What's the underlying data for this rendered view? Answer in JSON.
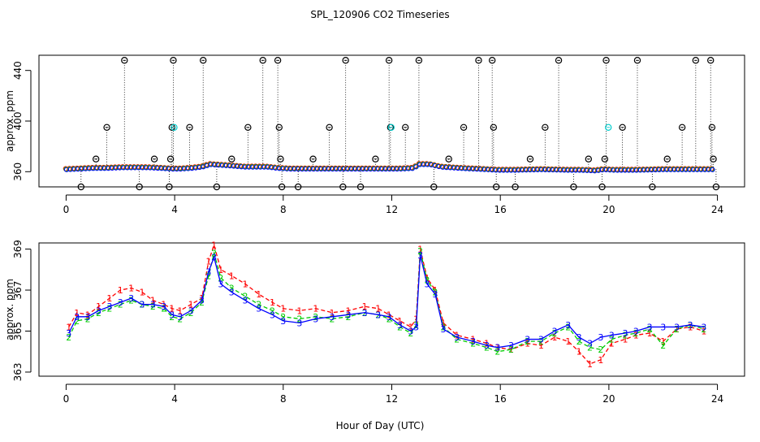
{
  "title": "SPL_120906  CO2 Timeseries",
  "xlabel": "Hour of Day (UTC)",
  "chart_data": [
    {
      "type": "scatter",
      "panel": "top",
      "ylabel": "approx. ppm",
      "xlim": [
        -1,
        25
      ],
      "ylim": [
        348,
        452
      ],
      "x_ticks": [
        0,
        4,
        8,
        12,
        16,
        20,
        24
      ],
      "y_ticks": [
        360,
        400,
        440
      ],
      "grid": false,
      "series": [
        {
          "marker": "o-black",
          "color": "#000000",
          "points": [
            [
              0.55,
              348
            ],
            [
              1.1,
              370
            ],
            [
              1.5,
              395
            ],
            [
              2.15,
              448
            ],
            [
              2.7,
              348
            ],
            [
              3.25,
              370
            ],
            [
              3.8,
              348
            ],
            [
              3.85,
              370
            ],
            [
              3.9,
              395
            ],
            [
              3.95,
              448
            ],
            [
              4.55,
              395
            ],
            [
              5.05,
              448
            ],
            [
              5.55,
              348
            ],
            [
              6.1,
              370
            ],
            [
              6.7,
              395
            ],
            [
              7.25,
              448
            ],
            [
              7.8,
              448
            ],
            [
              7.85,
              395
            ],
            [
              7.9,
              370
            ],
            [
              7.95,
              348
            ],
            [
              8.55,
              348
            ],
            [
              9.1,
              370
            ],
            [
              9.7,
              395
            ],
            [
              10.2,
              348
            ],
            [
              10.3,
              448
            ],
            [
              10.85,
              348
            ],
            [
              11.4,
              370
            ],
            [
              11.9,
              448
            ],
            [
              11.95,
              395
            ],
            [
              12.5,
              395
            ],
            [
              13.0,
              448
            ],
            [
              13.55,
              348
            ],
            [
              14.1,
              370
            ],
            [
              14.65,
              395
            ],
            [
              15.2,
              448
            ],
            [
              15.7,
              448
            ],
            [
              15.75,
              395
            ],
            [
              15.85,
              348
            ],
            [
              16.55,
              348
            ],
            [
              17.1,
              370
            ],
            [
              17.65,
              395
            ],
            [
              18.15,
              448
            ],
            [
              18.7,
              348
            ],
            [
              19.25,
              370
            ],
            [
              19.75,
              348
            ],
            [
              19.85,
              370
            ],
            [
              19.9,
              448
            ],
            [
              20.5,
              395
            ],
            [
              21.05,
              448
            ],
            [
              21.6,
              348
            ],
            [
              22.15,
              370
            ],
            [
              22.7,
              395
            ],
            [
              23.2,
              448
            ],
            [
              23.75,
              448
            ],
            [
              23.8,
              395
            ],
            [
              23.85,
              370
            ],
            [
              23.95,
              348
            ]
          ]
        },
        {
          "marker": "o-cyan",
          "color": "#00cccc",
          "points": [
            [
              3.98,
              395
            ],
            [
              11.98,
              395
            ],
            [
              19.98,
              395
            ]
          ]
        }
      ],
      "baseline": {
        "color": "#0000ff",
        "markers": [
          "1",
          "2",
          "3"
        ],
        "x": [
          0,
          0.5,
          1,
          1.5,
          2,
          2.5,
          3,
          3.5,
          3.9,
          4.2,
          4.6,
          5.0,
          5.3,
          6.0,
          6.6,
          7.4,
          7.8,
          8.2,
          9,
          10,
          11,
          11.8,
          12.3,
          12.8,
          13.0,
          13.4,
          13.8,
          14.5,
          15.5,
          15.9,
          16.5,
          17.5,
          18.5,
          19.0,
          19.5,
          19.8,
          20.2,
          21.0,
          22.0,
          23.0,
          23.8
        ],
        "y": [
          362,
          362.5,
          363,
          363,
          363.5,
          363.5,
          363.5,
          363,
          362.5,
          362.5,
          363,
          364,
          366,
          365,
          364,
          364,
          363,
          362.5,
          362.5,
          362.5,
          362.5,
          362.5,
          362.5,
          363,
          366,
          366,
          364,
          363,
          362,
          361.5,
          361.5,
          362,
          361.5,
          361.5,
          361,
          362,
          361.5,
          361.5,
          362,
          362,
          362
        ]
      }
    },
    {
      "type": "line",
      "panel": "bottom",
      "ylabel": "approx. ppm",
      "xlim": [
        -1,
        25
      ],
      "ylim": [
        362.8,
        369.3
      ],
      "x_ticks": [
        0,
        4,
        8,
        12,
        16,
        20,
        24
      ],
      "y_ticks": [
        363,
        365,
        367,
        369
      ],
      "grid": false,
      "x": [
        0.1,
        0.4,
        0.8,
        1.2,
        1.6,
        2.0,
        2.4,
        2.8,
        3.2,
        3.6,
        3.9,
        4.2,
        4.6,
        5.0,
        5.25,
        5.45,
        5.7,
        6.1,
        6.6,
        7.1,
        7.6,
        8.0,
        8.6,
        9.2,
        9.8,
        10.4,
        11.0,
        11.5,
        11.9,
        12.3,
        12.7,
        12.9,
        13.05,
        13.3,
        13.6,
        13.9,
        14.4,
        15.0,
        15.5,
        15.9,
        16.4,
        17.0,
        17.5,
        18.0,
        18.5,
        18.9,
        19.3,
        19.7,
        20.1,
        20.6,
        21.0,
        21.5,
        22.0,
        22.5,
        23.0,
        23.5
      ],
      "series": [
        {
          "name": "1",
          "color": "#ff0000",
          "values": [
            365.2,
            365.9,
            365.8,
            366.2,
            366.6,
            367.0,
            367.1,
            366.9,
            366.5,
            366.3,
            366.1,
            366.0,
            366.3,
            366.6,
            368.4,
            369.2,
            368.0,
            367.7,
            367.3,
            366.8,
            366.4,
            366.1,
            366.0,
            366.1,
            365.9,
            366.0,
            366.2,
            366.1,
            365.8,
            365.5,
            365.2,
            365.6,
            369.0,
            367.6,
            367.0,
            365.4,
            364.8,
            364.6,
            364.4,
            364.2,
            364.1,
            364.4,
            364.3,
            364.7,
            364.5,
            364.0,
            363.4,
            363.6,
            364.4,
            364.6,
            364.8,
            364.9,
            364.5,
            365.1,
            365.2,
            365.0
          ]
        },
        {
          "name": "2",
          "color": "#00cc00",
          "values": [
            364.7,
            365.5,
            365.6,
            365.9,
            366.1,
            366.3,
            366.5,
            366.3,
            366.2,
            366.1,
            365.7,
            365.6,
            365.9,
            366.4,
            367.7,
            368.8,
            367.6,
            367.1,
            366.7,
            366.3,
            366.0,
            365.7,
            365.6,
            365.7,
            365.6,
            365.7,
            365.9,
            365.8,
            365.6,
            365.2,
            364.9,
            365.3,
            368.9,
            367.5,
            366.9,
            365.2,
            364.6,
            364.4,
            364.2,
            364.0,
            364.1,
            364.5,
            364.5,
            364.9,
            365.2,
            364.5,
            364.2,
            364.1,
            364.6,
            364.8,
            364.9,
            365.1,
            364.3,
            365.1,
            365.3,
            365.1
          ]
        },
        {
          "name": "3",
          "color": "#0000ff",
          "values": [
            364.9,
            365.7,
            365.7,
            366.0,
            366.2,
            366.4,
            366.6,
            366.3,
            366.3,
            366.2,
            365.8,
            365.7,
            366.0,
            366.5,
            367.9,
            368.6,
            367.3,
            366.9,
            366.5,
            366.1,
            365.8,
            365.5,
            365.4,
            365.6,
            365.7,
            365.8,
            365.9,
            365.8,
            365.7,
            365.3,
            365.0,
            365.2,
            368.7,
            367.3,
            366.8,
            365.1,
            364.7,
            364.5,
            364.3,
            364.2,
            364.3,
            364.6,
            364.6,
            365.0,
            365.3,
            364.7,
            364.4,
            364.7,
            364.8,
            364.9,
            365.0,
            365.2,
            365.2,
            365.2,
            365.3,
            365.2
          ]
        }
      ]
    }
  ]
}
